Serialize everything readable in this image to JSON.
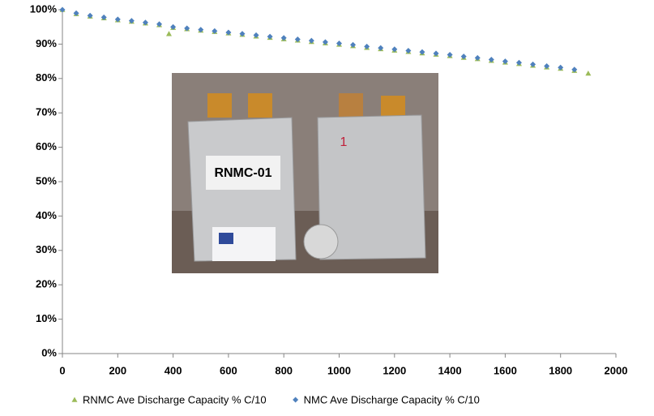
{
  "chart_data": {
    "type": "scatter",
    "xlim": [
      0,
      2000
    ],
    "xticks": [
      0,
      200,
      400,
      600,
      800,
      1000,
      1200,
      1400,
      1600,
      1800,
      2000
    ],
    "ylim": [
      0,
      100
    ],
    "yticks": [
      {
        "value": 0,
        "label": "0%"
      },
      {
        "value": 10,
        "label": "10%"
      },
      {
        "value": 20,
        "label": "20%"
      },
      {
        "value": 30,
        "label": "30%"
      },
      {
        "value": 40,
        "label": "40%"
      },
      {
        "value": 50,
        "label": "50%"
      },
      {
        "value": 60,
        "label": "60%"
      },
      {
        "value": 70,
        "label": "70%"
      },
      {
        "value": 80,
        "label": "80%"
      },
      {
        "value": 90,
        "label": "90%"
      },
      {
        "value": 100,
        "label": "100%"
      }
    ],
    "legend": "bottom",
    "series": [
      {
        "name": "RNMC Ave Discharge Capacity % C/10",
        "color": "#9bbb59",
        "marker": "triangle",
        "x": [
          0,
          50,
          100,
          150,
          200,
          250,
          300,
          350,
          385,
          400,
          450,
          500,
          550,
          600,
          650,
          700,
          750,
          800,
          850,
          900,
          950,
          1000,
          1050,
          1100,
          1150,
          1200,
          1250,
          1300,
          1350,
          1400,
          1450,
          1500,
          1550,
          1600,
          1650,
          1700,
          1750,
          1800,
          1850,
          1900
        ],
        "values": [
          100,
          98.8,
          98.1,
          97.6,
          97.0,
          96.6,
          96.1,
          95.6,
          93,
          94.8,
          94.4,
          94.0,
          93.6,
          93.2,
          92.8,
          92.3,
          91.9,
          91.5,
          91.1,
          90.7,
          90.3,
          89.9,
          89.5,
          89.0,
          88.6,
          88.2,
          87.8,
          87.4,
          87.0,
          86.6,
          86.1,
          85.7,
          85.2,
          84.7,
          84.3,
          83.8,
          83.3,
          82.9,
          82.3,
          81.5
        ]
      },
      {
        "name": "NMC Ave Discharge Capacity % C/10",
        "color": "#4f81bd",
        "marker": "diamond",
        "x": [
          0,
          50,
          100,
          150,
          200,
          250,
          300,
          350,
          400,
          450,
          500,
          550,
          600,
          650,
          700,
          750,
          800,
          850,
          900,
          950,
          1000,
          1050,
          1100,
          1150,
          1200,
          1250,
          1300,
          1350,
          1400,
          1450,
          1500,
          1550,
          1600,
          1650,
          1700,
          1750,
          1800,
          1850
        ],
        "values": [
          100,
          99,
          98.3,
          97.8,
          97.2,
          96.8,
          96.3,
          95.8,
          95,
          94.6,
          94.2,
          93.8,
          93.4,
          93,
          92.6,
          92.2,
          91.8,
          91.4,
          91,
          90.6,
          90.2,
          89.8,
          89.3,
          88.9,
          88.5,
          88.1,
          87.7,
          87.3,
          86.9,
          86.4,
          86,
          85.5,
          85,
          84.6,
          84.1,
          83.6,
          83.2,
          82.6
        ]
      }
    ]
  },
  "photo": {
    "cell_label": "RNMC-01",
    "cell_number": "1"
  }
}
